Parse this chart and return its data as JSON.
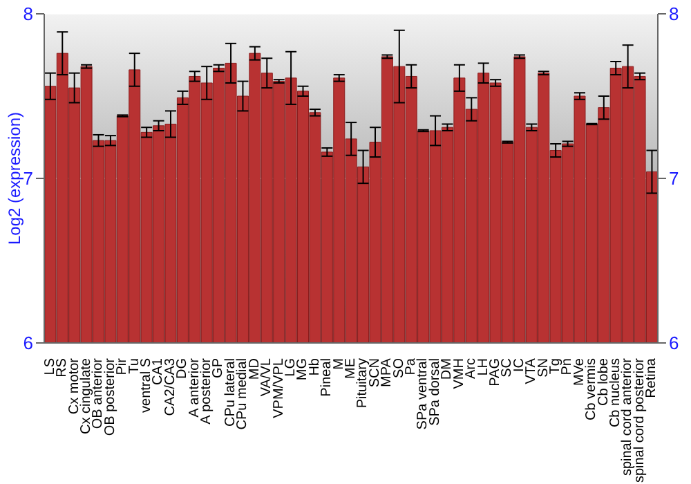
{
  "chart_data": {
    "type": "bar",
    "ylabel": "Log2 (expression)",
    "categories": [
      "LS",
      "RS",
      "Cx motor",
      "Cx cingulate",
      "OB anterior",
      "OB posterior",
      "Pir",
      "Tu",
      "ventral S",
      "CA1",
      "CA2/CA3",
      "DG",
      "A anterior",
      "A posterior",
      "GP",
      "CPu lateral",
      "CPu medial",
      "MD",
      "VA/VL",
      "VPM/VPL",
      "LG",
      "MG",
      "Hb",
      "Pineal",
      "M",
      "ME",
      "Pituitary",
      "SCN",
      "MPA",
      "SO",
      "Pa",
      "SPa ventral",
      "SPa dorsal",
      "DM",
      "VMH",
      "Arc",
      "LH",
      "PAG",
      "SC",
      "IC",
      "VTA",
      "SN",
      "Tg",
      "Pn",
      "MVe",
      "Cb vermis",
      "Cb lobe",
      "Cb nucleus",
      "spinal cord anterior",
      "spinal cord posterior",
      "Retina"
    ],
    "values": [
      7.56,
      7.76,
      7.55,
      7.68,
      7.23,
      7.23,
      7.38,
      7.66,
      7.28,
      7.32,
      7.33,
      7.49,
      7.62,
      7.58,
      7.67,
      7.7,
      7.5,
      7.76,
      7.64,
      7.59,
      7.61,
      7.53,
      7.4,
      7.16,
      7.61,
      7.24,
      7.07,
      7.22,
      7.74,
      7.68,
      7.62,
      7.29,
      7.29,
      7.31,
      7.61,
      7.42,
      7.64,
      7.58,
      7.22,
      7.74,
      7.31,
      7.64,
      7.17,
      7.21,
      7.5,
      7.33,
      7.43,
      7.67,
      7.68,
      7.62,
      7.04
    ],
    "errors": [
      0.08,
      0.13,
      0.09,
      0.01,
      0.035,
      0.03,
      0.005,
      0.1,
      0.03,
      0.03,
      0.08,
      0.04,
      0.03,
      0.1,
      0.02,
      0.12,
      0.09,
      0.04,
      0.09,
      0.01,
      0.16,
      0.03,
      0.02,
      0.025,
      0.02,
      0.1,
      0.1,
      0.09,
      0.01,
      0.22,
      0.07,
      0.005,
      0.09,
      0.02,
      0.08,
      0.07,
      0.06,
      0.02,
      0.005,
      0.01,
      0.02,
      0.01,
      0.04,
      0.015,
      0.02,
      0.003,
      0.07,
      0.04,
      0.13,
      0.02,
      0.13
    ],
    "color": "#b83232",
    "ylim": [
      6,
      8
    ],
    "yticks": [
      6,
      7,
      8
    ],
    "y2lim": [
      6,
      8
    ],
    "y2ticks": [
      6,
      7,
      8
    ],
    "grid": "y"
  }
}
